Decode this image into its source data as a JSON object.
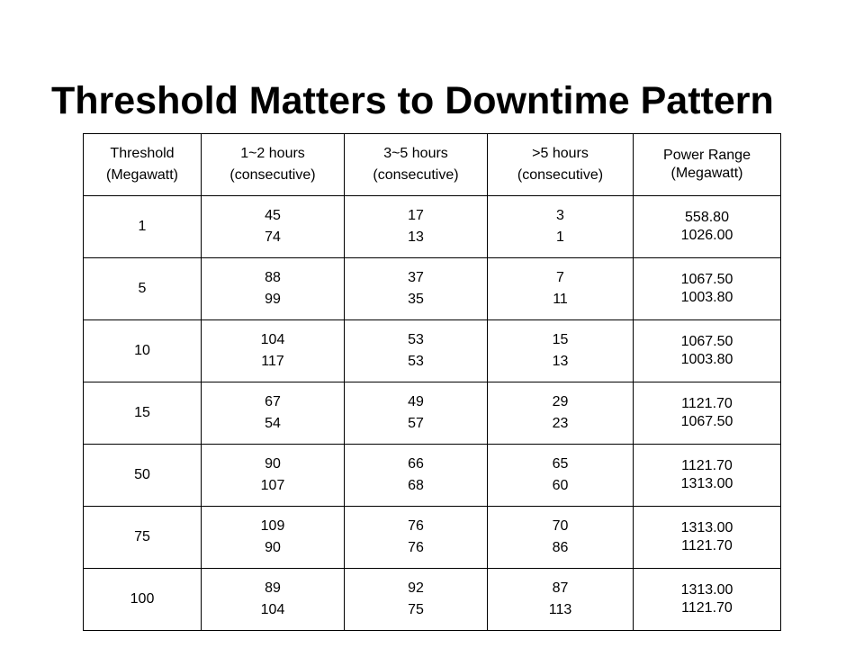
{
  "slide": {
    "title": "Threshold Matters to Downtime Pattern"
  },
  "table": {
    "headers": [
      [
        "Threshold",
        "(Megawatt)"
      ],
      [
        "1~2 hours",
        "(consecutive)"
      ],
      [
        "3~5 hours",
        "(consecutive)"
      ],
      [
        ">5 hours",
        "(consecutive)"
      ],
      [
        "Power Range",
        "(Megawatt)"
      ]
    ],
    "rows": [
      {
        "threshold": "1",
        "h1_2": [
          "45",
          "74"
        ],
        "h3_5": [
          "17",
          "13"
        ],
        "h5p": [
          "3",
          "1"
        ],
        "power_range": [
          "558.80",
          "1026.00"
        ]
      },
      {
        "threshold": "5",
        "h1_2": [
          "88",
          "99"
        ],
        "h3_5": [
          "37",
          "35"
        ],
        "h5p": [
          "7",
          "11"
        ],
        "power_range": [
          "1067.50",
          "1003.80"
        ]
      },
      {
        "threshold": "10",
        "h1_2": [
          "104",
          "117"
        ],
        "h3_5": [
          "53",
          "53"
        ],
        "h5p": [
          "15",
          "13"
        ],
        "power_range": [
          "1067.50",
          "1003.80"
        ]
      },
      {
        "threshold": "15",
        "h1_2": [
          "67",
          "54"
        ],
        "h3_5": [
          "49",
          "57"
        ],
        "h5p": [
          "29",
          "23"
        ],
        "power_range": [
          "1121.70",
          "1067.50"
        ]
      },
      {
        "threshold": "50",
        "h1_2": [
          "90",
          "107"
        ],
        "h3_5": [
          "66",
          "68"
        ],
        "h5p": [
          "65",
          "60"
        ],
        "power_range": [
          "1121.70",
          "1313.00"
        ]
      },
      {
        "threshold": "75",
        "h1_2": [
          "109",
          "90"
        ],
        "h3_5": [
          "76",
          "76"
        ],
        "h5p": [
          "70",
          "86"
        ],
        "power_range": [
          "1313.00",
          "1121.70"
        ]
      },
      {
        "threshold": "100",
        "h1_2": [
          "89",
          "104"
        ],
        "h3_5": [
          "92",
          "75"
        ],
        "h5p": [
          "87",
          "113"
        ],
        "power_range": [
          "1313.00",
          "1121.70"
        ]
      }
    ]
  }
}
